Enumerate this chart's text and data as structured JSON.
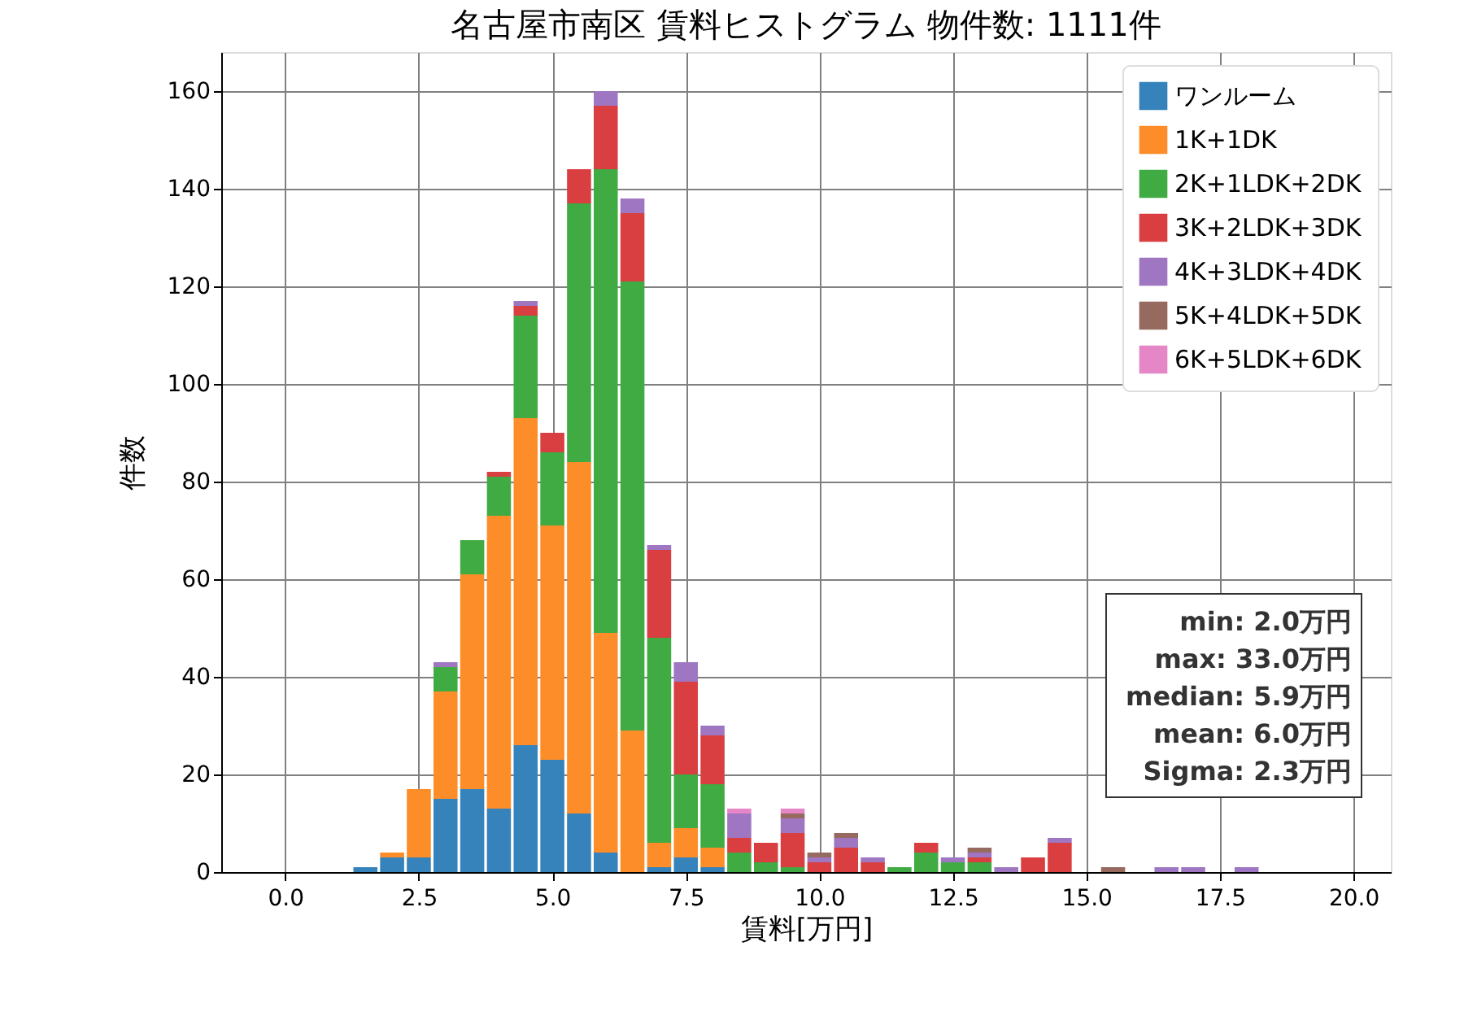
{
  "chart_data": {
    "type": "bar",
    "stacked": true,
    "title": "名古屋市南区 賃料ヒストグラム  物件数: 1111件",
    "xlabel": "賃料[万円]",
    "ylabel": "件数",
    "x": [
      1.5,
      2.0,
      2.5,
      3.0,
      3.5,
      4.0,
      4.5,
      5.0,
      5.5,
      6.0,
      6.5,
      7.0,
      7.5,
      8.0,
      8.5,
      9.0,
      9.5,
      10.0,
      10.5,
      11.0,
      11.5,
      12.0,
      12.5,
      13.0,
      13.5,
      14.0,
      14.5,
      15.0,
      15.5,
      16.0,
      16.5,
      17.0,
      17.5,
      18.0
    ],
    "series": [
      {
        "name": "ワンルーム",
        "color": "#3683bb",
        "values": [
          1,
          3,
          3,
          15,
          17,
          13,
          26,
          23,
          12,
          4,
          0,
          1,
          3,
          1,
          0,
          0,
          0,
          0,
          0,
          0,
          0,
          0,
          0,
          0,
          0,
          0,
          0,
          0,
          0,
          0,
          0,
          0,
          0,
          0
        ]
      },
      {
        "name": "1K+1DK",
        "color": "#fd8d29",
        "values": [
          0,
          1,
          14,
          22,
          44,
          60,
          67,
          48,
          72,
          45,
          29,
          5,
          6,
          4,
          0,
          0,
          0,
          0,
          0,
          0,
          0,
          0,
          0,
          0,
          0,
          0,
          0,
          0,
          0,
          0,
          0,
          0,
          0,
          0
        ]
      },
      {
        "name": "2K+1LDK+2DK",
        "color": "#40aa43",
        "values": [
          0,
          0,
          0,
          5,
          7,
          8,
          21,
          15,
          53,
          95,
          92,
          42,
          11,
          13,
          4,
          2,
          1,
          0,
          0,
          0,
          1,
          4,
          2,
          2,
          0,
          0,
          0,
          0,
          0,
          0,
          0,
          0,
          0,
          0
        ]
      },
      {
        "name": "3K+2LDK+3DK",
        "color": "#d93f40",
        "values": [
          0,
          0,
          0,
          0,
          0,
          1,
          2,
          4,
          7,
          13,
          14,
          18,
          19,
          10,
          3,
          4,
          7,
          2,
          5,
          2,
          0,
          2,
          0,
          1,
          0,
          3,
          6,
          0,
          0,
          0,
          0,
          0,
          0,
          0
        ]
      },
      {
        "name": "4K+3LDK+4DK",
        "color": "#9e76c2",
        "values": [
          0,
          0,
          0,
          1,
          0,
          0,
          1,
          0,
          0,
          3,
          3,
          1,
          4,
          2,
          5,
          0,
          3,
          1,
          2,
          1,
          0,
          0,
          1,
          1,
          1,
          0,
          1,
          0,
          0,
          0,
          1,
          1,
          0,
          1
        ]
      },
      {
        "name": "5K+4LDK+5DK",
        "color": "#976a5f",
        "values": [
          0,
          0,
          0,
          0,
          0,
          0,
          0,
          0,
          0,
          0,
          0,
          0,
          0,
          0,
          0,
          0,
          1,
          1,
          1,
          0,
          0,
          0,
          0,
          1,
          0,
          0,
          0,
          0,
          1,
          0,
          0,
          0,
          0,
          0
        ]
      },
      {
        "name": "6K+5LDK+6DK",
        "color": "#e586c6",
        "values": [
          0,
          0,
          0,
          0,
          0,
          0,
          0,
          0,
          0,
          0,
          0,
          0,
          0,
          0,
          1,
          0,
          1,
          0,
          0,
          0,
          0,
          0,
          0,
          0,
          0,
          0,
          0,
          0,
          0,
          0,
          0,
          0,
          0,
          0
        ]
      }
    ],
    "xlim": [
      -1.2,
      20.7
    ],
    "ylim": [
      0,
      168
    ],
    "xticks": [
      {
        "value": 0,
        "label": "0.0"
      },
      {
        "value": 2.5,
        "label": "2.5"
      },
      {
        "value": 5,
        "label": "5.0"
      },
      {
        "value": 7.5,
        "label": "7.5"
      },
      {
        "value": 10,
        "label": "10.0"
      },
      {
        "value": 12.5,
        "label": "12.5"
      },
      {
        "value": 15,
        "label": "15.0"
      },
      {
        "value": 17.5,
        "label": "17.5"
      },
      {
        "value": 20,
        "label": "20.0"
      }
    ],
    "yticks": [
      0,
      20,
      40,
      60,
      80,
      100,
      120,
      140,
      160
    ],
    "grid": true,
    "legend": "top right",
    "annotations": [
      "min: 2.0万円",
      "max: 33.0万円",
      "median: 5.9万円",
      "mean: 6.0万円",
      "Sigma: 2.3万円"
    ]
  }
}
